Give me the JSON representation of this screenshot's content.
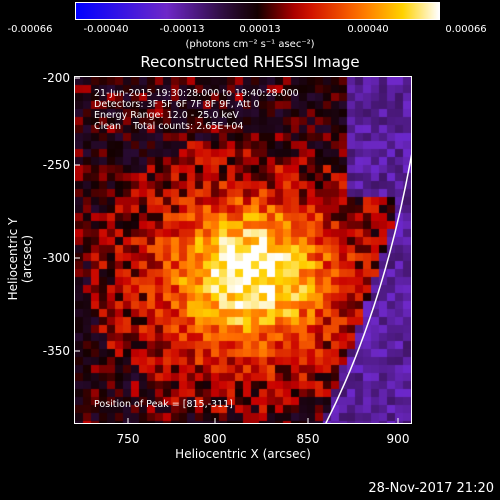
{
  "colorbar": {
    "ticks": [
      "-0.00066",
      "-0.00040",
      "-0.00013",
      "0.00013",
      "0.00040",
      "0.00066"
    ],
    "units": "(photons cm⁻² s⁻¹ asec⁻²)"
  },
  "title": "Reconstructed RHESSI Image",
  "info": {
    "time": "21-Jun-2015 19:30:28.000 to 19:40:28.000",
    "detectors": "Detectors: 3F 5F 6F 7F 8F 9F, Att 0",
    "energy": "Energy Range: 12.0 - 25.0 keV",
    "clean": "Clean    Total counts: 2.65E+04"
  },
  "peak": "Position of Peak = [815,-311]",
  "axes": {
    "xlabel": "Heliocentric X (arcsec)",
    "ylabel": "Heliocentric Y (arcsec)",
    "xticks": [
      "750",
      "800",
      "850",
      "900"
    ],
    "yticks": [
      "-200",
      "-250",
      "-300",
      "-350"
    ]
  },
  "footer_date": "28-Nov-2017 21:20"
}
